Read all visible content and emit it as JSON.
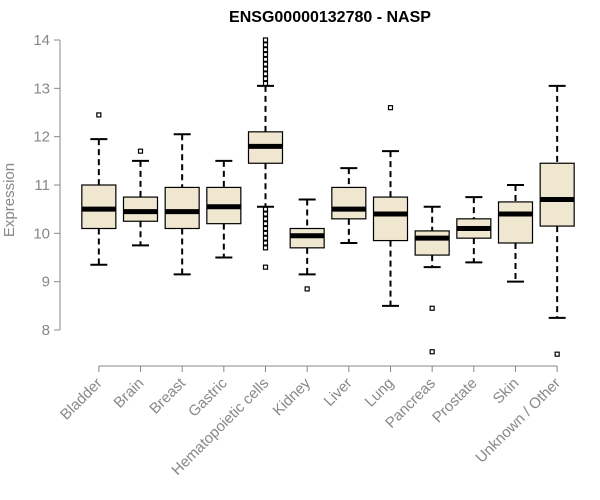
{
  "chart_data": {
    "type": "boxplot",
    "title": "ENSG00000132780 - NASP",
    "ylabel": "Expression",
    "ylim": [
      7.4,
      14.1
    ],
    "yticks": [
      8,
      9,
      10,
      11,
      12,
      13,
      14
    ],
    "box_fill": "#efe7cf",
    "categories": [
      "Bladder",
      "Brain",
      "Breast",
      "Gastric",
      "Hematopoietic cells",
      "Kidney",
      "Liver",
      "Lung",
      "Pancreas",
      "Prostate",
      "Skin",
      "Unknown / Other"
    ],
    "series": [
      {
        "label": "Bladder",
        "q1": 10.1,
        "median": 10.5,
        "q3": 11.0,
        "whisker_low": 9.35,
        "whisker_high": 11.95,
        "outliers": [
          12.45
        ]
      },
      {
        "label": "Brain",
        "q1": 10.25,
        "median": 10.45,
        "q3": 10.75,
        "whisker_low": 9.75,
        "whisker_high": 11.5,
        "outliers": [
          11.7
        ]
      },
      {
        "label": "Breast",
        "q1": 10.1,
        "median": 10.45,
        "q3": 10.95,
        "whisker_low": 9.15,
        "whisker_high": 12.05,
        "outliers": []
      },
      {
        "label": "Gastric",
        "q1": 10.2,
        "median": 10.55,
        "q3": 10.95,
        "whisker_low": 9.5,
        "whisker_high": 11.5,
        "outliers": []
      },
      {
        "label": "Hematopoietic cells",
        "q1": 11.45,
        "median": 11.8,
        "q3": 12.1,
        "whisker_low": 10.55,
        "whisker_high": 13.05,
        "outliers": [
          13.1,
          13.2,
          13.3,
          13.4,
          13.5,
          13.6,
          13.7,
          13.8,
          13.9,
          14.0,
          10.5,
          10.4,
          10.3,
          10.2,
          10.1,
          10.0,
          9.9,
          9.8,
          9.7,
          9.3
        ]
      },
      {
        "label": "Kidney",
        "q1": 9.7,
        "median": 9.95,
        "q3": 10.1,
        "whisker_low": 9.15,
        "whisker_high": 10.7,
        "outliers": [
          8.85
        ]
      },
      {
        "label": "Liver",
        "q1": 10.3,
        "median": 10.5,
        "q3": 10.95,
        "whisker_low": 9.8,
        "whisker_high": 11.35,
        "outliers": []
      },
      {
        "label": "Lung",
        "q1": 9.85,
        "median": 10.4,
        "q3": 10.75,
        "whisker_low": 8.5,
        "whisker_high": 11.7,
        "outliers": [
          12.6
        ]
      },
      {
        "label": "Pancreas",
        "q1": 9.55,
        "median": 9.9,
        "q3": 10.05,
        "whisker_low": 9.3,
        "whisker_high": 10.55,
        "outliers": [
          8.45,
          7.55
        ]
      },
      {
        "label": "Prostate",
        "q1": 9.9,
        "median": 10.1,
        "q3": 10.3,
        "whisker_low": 9.4,
        "whisker_high": 10.75,
        "outliers": []
      },
      {
        "label": "Skin",
        "q1": 9.8,
        "median": 10.4,
        "q3": 10.65,
        "whisker_low": 9.0,
        "whisker_high": 11.0,
        "outliers": []
      },
      {
        "label": "Unknown / Other",
        "q1": 10.15,
        "median": 10.7,
        "q3": 11.45,
        "whisker_low": 8.25,
        "whisker_high": 13.05,
        "outliers": [
          7.5
        ]
      }
    ],
    "grid": false,
    "legend": "none"
  }
}
